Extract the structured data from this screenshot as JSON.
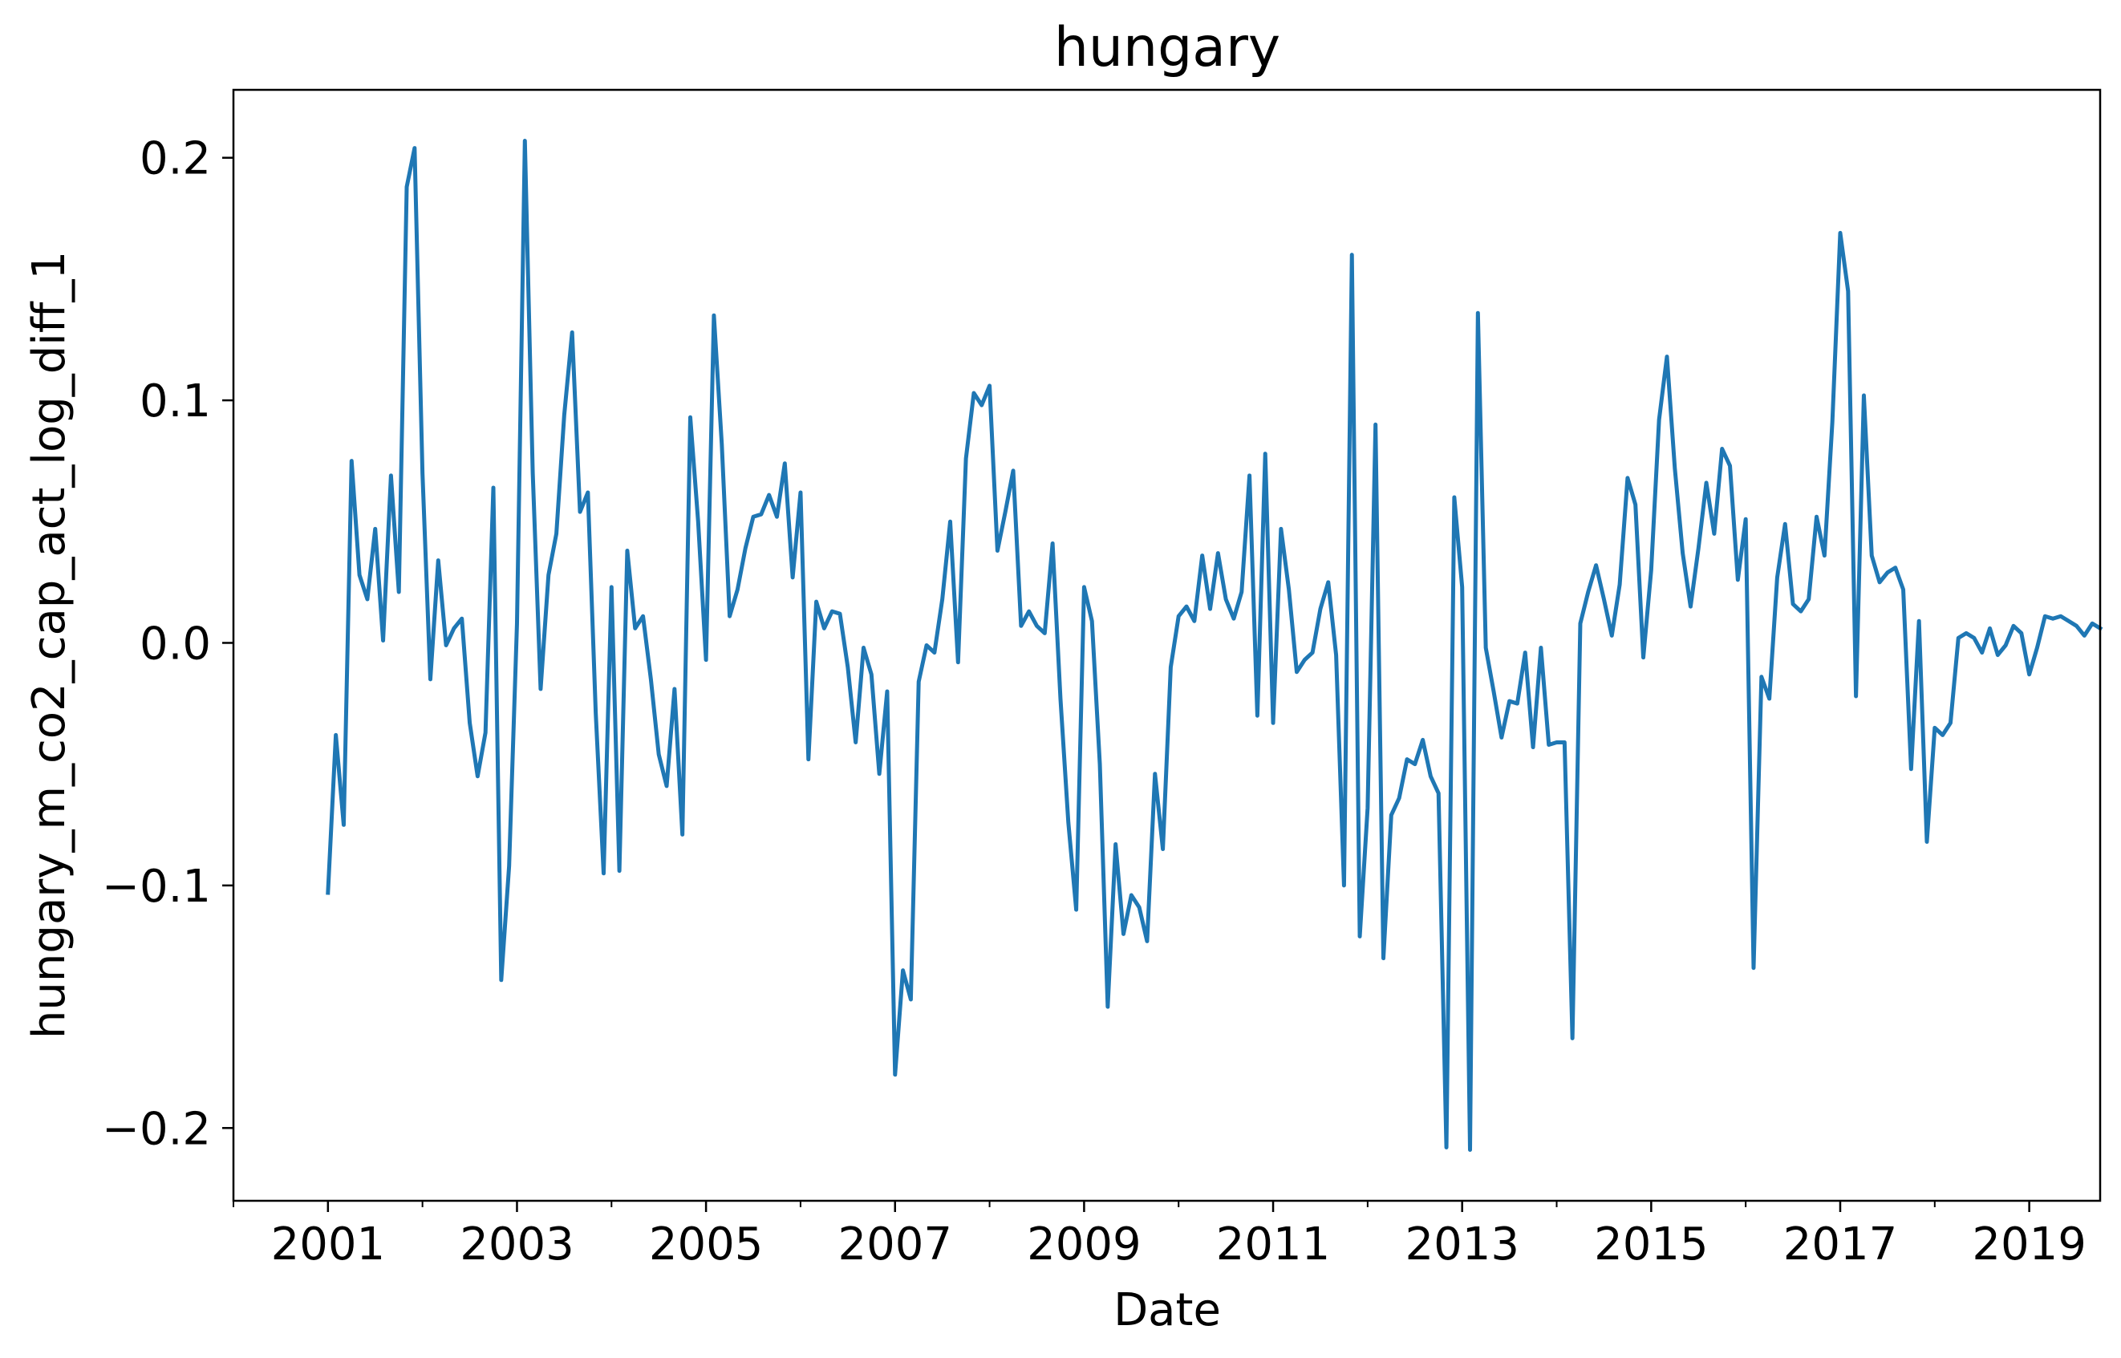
{
  "chart_data": {
    "type": "line",
    "title": "hungary",
    "xlabel": "Date",
    "ylabel": "hungary_m_co2_cap_act_log_diff_1",
    "x_tick_labels": [
      "2001",
      "2003",
      "2005",
      "2007",
      "2009",
      "2011",
      "2013",
      "2015",
      "2017",
      "2019"
    ],
    "y_tick_labels": [
      "−0.2",
      "−0.1",
      "0.0",
      "0.1",
      "0.2"
    ],
    "y_ticks": [
      -0.2,
      -0.1,
      0.0,
      0.1,
      0.2
    ],
    "xlim": [
      "2000-01",
      "2019-10"
    ],
    "ylim": [
      -0.23,
      0.228
    ],
    "grid": false,
    "color": "#1f77b4",
    "x": [
      "2001-01",
      "2001-02",
      "2001-03",
      "2001-04",
      "2001-05",
      "2001-06",
      "2001-07",
      "2001-08",
      "2001-09",
      "2001-10",
      "2001-11",
      "2001-12",
      "2002-01",
      "2002-02",
      "2002-03",
      "2002-04",
      "2002-05",
      "2002-06",
      "2002-07",
      "2002-08",
      "2002-09",
      "2002-10",
      "2002-11",
      "2002-12",
      "2003-01",
      "2003-02",
      "2003-03",
      "2003-04",
      "2003-05",
      "2003-06",
      "2003-07",
      "2003-08",
      "2003-09",
      "2003-10",
      "2003-11",
      "2003-12",
      "2004-01",
      "2004-02",
      "2004-03",
      "2004-04",
      "2004-05",
      "2004-06",
      "2004-07",
      "2004-08",
      "2004-09",
      "2004-10",
      "2004-11",
      "2004-12",
      "2005-01",
      "2005-02",
      "2005-03",
      "2005-04",
      "2005-05",
      "2005-06",
      "2005-07",
      "2005-08",
      "2005-09",
      "2005-10",
      "2005-11",
      "2005-12",
      "2006-01",
      "2006-02",
      "2006-03",
      "2006-04",
      "2006-05",
      "2006-06",
      "2006-07",
      "2006-08",
      "2006-09",
      "2006-10",
      "2006-11",
      "2006-12",
      "2007-01",
      "2007-02",
      "2007-03",
      "2007-04",
      "2007-05",
      "2007-06",
      "2007-07",
      "2007-08",
      "2007-09",
      "2007-10",
      "2007-11",
      "2007-12",
      "2008-01",
      "2008-02",
      "2008-03",
      "2008-04",
      "2008-05",
      "2008-06",
      "2008-07",
      "2008-08",
      "2008-09",
      "2008-10",
      "2008-11",
      "2008-12",
      "2009-01",
      "2009-02",
      "2009-03",
      "2009-04",
      "2009-05",
      "2009-06",
      "2009-07",
      "2009-08",
      "2009-09",
      "2009-10",
      "2009-11",
      "2009-12",
      "2010-01",
      "2010-02",
      "2010-03",
      "2010-04",
      "2010-05",
      "2010-06",
      "2010-07",
      "2010-08",
      "2010-09",
      "2010-10",
      "2010-11",
      "2010-12",
      "2011-01",
      "2011-02",
      "2011-03",
      "2011-04",
      "2011-05",
      "2011-06",
      "2011-07",
      "2011-08",
      "2011-09",
      "2011-10",
      "2011-11",
      "2011-12",
      "2012-01",
      "2012-02",
      "2012-03",
      "2012-04",
      "2012-05",
      "2012-06",
      "2012-07",
      "2012-08",
      "2012-09",
      "2012-10",
      "2012-11",
      "2012-12",
      "2013-01",
      "2013-02",
      "2013-03",
      "2013-04",
      "2013-05",
      "2013-06",
      "2013-07",
      "2013-08",
      "2013-09",
      "2013-10",
      "2013-11",
      "2013-12",
      "2014-01",
      "2014-02",
      "2014-03",
      "2014-04",
      "2014-05",
      "2014-06",
      "2014-07",
      "2014-08",
      "2014-09",
      "2014-10",
      "2014-11",
      "2014-12",
      "2015-01",
      "2015-02",
      "2015-03",
      "2015-04",
      "2015-05",
      "2015-06",
      "2015-07",
      "2015-08",
      "2015-09",
      "2015-10",
      "2015-11",
      "2015-12",
      "2016-01",
      "2016-02",
      "2016-03",
      "2016-04",
      "2016-05",
      "2016-06",
      "2016-07",
      "2016-08",
      "2016-09",
      "2016-10",
      "2016-11",
      "2016-12",
      "2017-01",
      "2017-02",
      "2017-03",
      "2017-04",
      "2017-05",
      "2017-06",
      "2017-07",
      "2017-08",
      "2017-09",
      "2017-10",
      "2017-11",
      "2017-12",
      "2018-01",
      "2018-02",
      "2018-03",
      "2018-04",
      "2018-05",
      "2018-06",
      "2018-07",
      "2018-08",
      "2018-09",
      "2018-10",
      "2018-11",
      "2018-12",
      "2019-01",
      "2019-02",
      "2019-03",
      "2019-04",
      "2019-05",
      "2019-06",
      "2019-07",
      "2019-08",
      "2019-09",
      "2019-10"
    ],
    "y": [
      -0.103,
      -0.038,
      -0.075,
      0.075,
      0.028,
      0.018,
      0.047,
      0.001,
      0.069,
      0.021,
      0.188,
      0.204,
      0.07,
      -0.015,
      0.034,
      -0.001,
      0.006,
      0.01,
      -0.033,
      -0.055,
      -0.037,
      0.064,
      -0.139,
      -0.092,
      0.008,
      0.207,
      0.07,
      -0.019,
      0.028,
      0.045,
      0.094,
      0.128,
      0.054,
      0.062,
      -0.029,
      -0.095,
      0.023,
      -0.094,
      0.038,
      0.006,
      0.011,
      -0.015,
      -0.046,
      -0.059,
      -0.019,
      -0.079,
      0.093,
      0.05,
      -0.007,
      0.135,
      0.082,
      0.011,
      0.022,
      0.039,
      0.052,
      0.053,
      0.061,
      0.052,
      0.074,
      0.027,
      0.062,
      -0.048,
      0.017,
      0.006,
      0.013,
      0.012,
      -0.01,
      -0.041,
      -0.002,
      -0.013,
      -0.054,
      -0.02,
      -0.178,
      -0.135,
      -0.147,
      -0.016,
      -0.001,
      -0.004,
      0.018,
      0.05,
      -0.008,
      0.076,
      0.103,
      0.098,
      0.106,
      0.038,
      0.054,
      0.071,
      0.007,
      0.013,
      0.007,
      0.004,
      0.041,
      -0.023,
      -0.074,
      -0.11,
      0.023,
      0.009,
      -0.05,
      -0.15,
      -0.083,
      -0.12,
      -0.104,
      -0.109,
      -0.123,
      -0.054,
      -0.085,
      -0.01,
      0.011,
      0.015,
      0.009,
      0.036,
      0.014,
      0.037,
      0.018,
      0.01,
      0.021,
      0.069,
      -0.03,
      0.078,
      -0.033,
      0.047,
      0.022,
      -0.012,
      -0.007,
      -0.004,
      0.014,
      0.025,
      -0.005,
      -0.1,
      0.16,
      -0.121,
      -0.068,
      0.09,
      -0.13,
      -0.071,
      -0.064,
      -0.048,
      -0.05,
      -0.04,
      -0.055,
      -0.062,
      -0.208,
      0.06,
      0.023,
      -0.209,
      0.136,
      -0.002,
      -0.02,
      -0.039,
      -0.024,
      -0.025,
      -0.004,
      -0.043,
      -0.002,
      -0.042,
      -0.041,
      -0.041,
      -0.163,
      0.008,
      0.021,
      0.032,
      0.018,
      0.003,
      0.024,
      0.068,
      0.057,
      -0.006,
      0.03,
      0.092,
      0.118,
      0.072,
      0.037,
      0.015,
      0.039,
      0.066,
      0.045,
      0.08,
      0.073,
      0.026,
      0.051,
      -0.134,
      -0.014,
      -0.023,
      0.027,
      0.049,
      0.016,
      0.013,
      0.018,
      0.052,
      0.036,
      0.091,
      0.169,
      0.145,
      -0.022,
      0.102,
      0.036,
      0.025,
      0.029,
      0.031,
      0.022,
      -0.052,
      0.009,
      -0.082,
      -0.035,
      -0.038,
      -0.033,
      0.002,
      0.004,
      0.002,
      -0.004,
      0.006,
      -0.005,
      -0.001,
      0.007,
      0.004,
      -0.013,
      -0.002,
      0.011,
      0.01,
      0.011,
      0.009,
      0.007,
      0.003,
      0.008,
      0.006
    ]
  }
}
